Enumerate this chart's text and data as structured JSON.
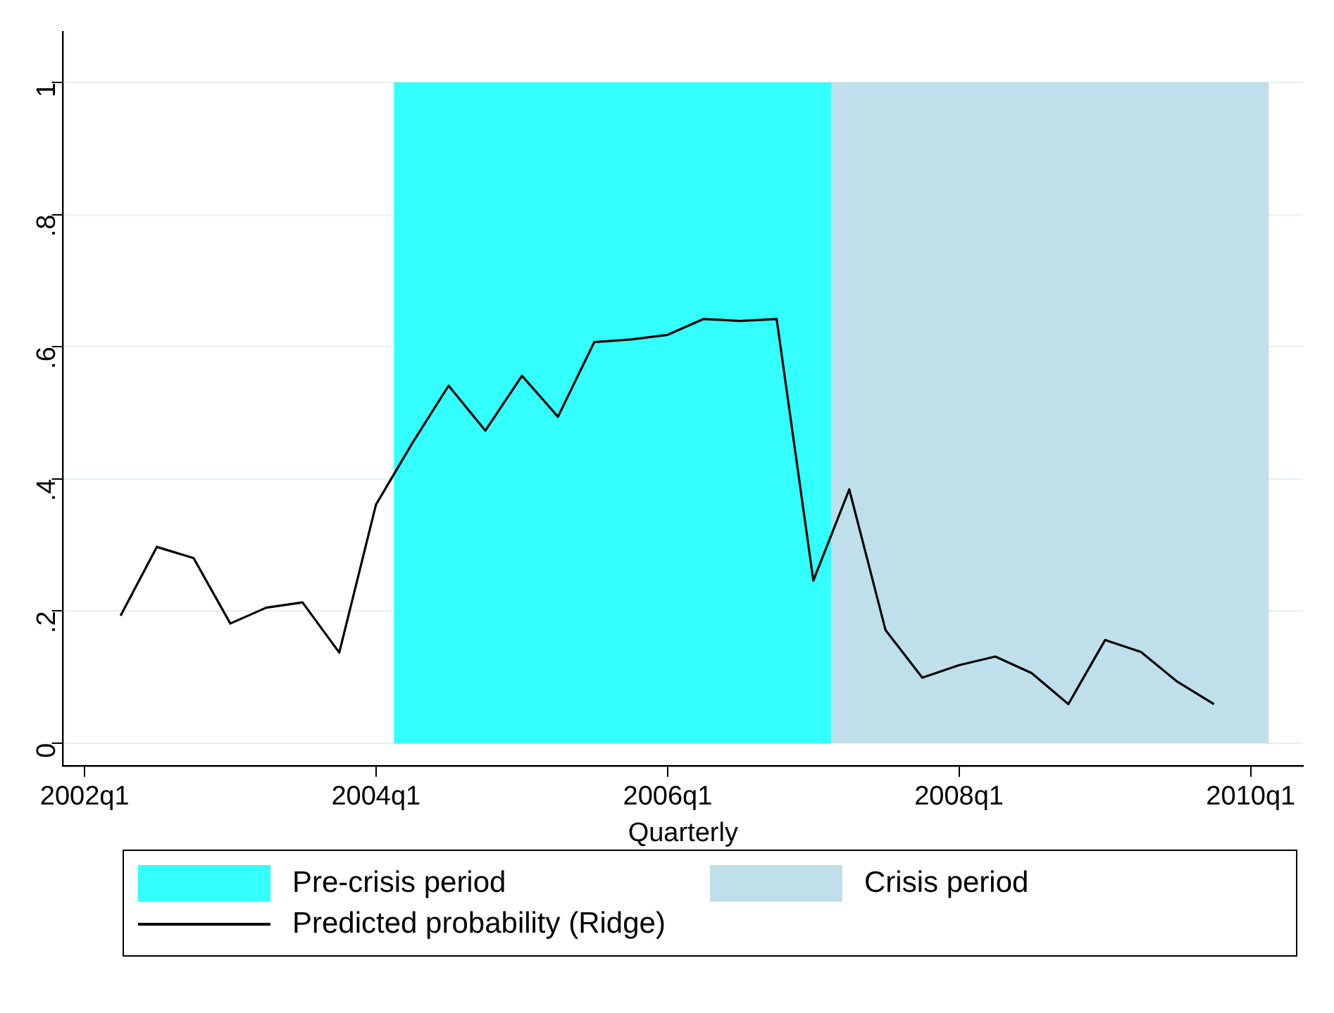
{
  "chart_data": {
    "type": "line",
    "xlabel": "Quarterly",
    "x": [
      "2002-04",
      "2002-07",
      "2002-10",
      "2003-01",
      "2003-04",
      "2003-07",
      "2003-10",
      "2004-01",
      "2004-04",
      "2004-07",
      "2004-10",
      "2005-01",
      "2005-04",
      "2005-07",
      "2005-10",
      "2006-01",
      "2006-04",
      "2006-07",
      "2006-10",
      "2007-01",
      "2007-04",
      "2007-07",
      "2007-10",
      "2008-01",
      "2008-04",
      "2008-07",
      "2008-10",
      "2009-01",
      "2009-04",
      "2009-07",
      "2009-10"
    ],
    "series": [
      {
        "name": "Predicted probability (Ridge)",
        "color": "#000000",
        "values": [
          0.193,
          0.297,
          0.28,
          0.181,
          0.205,
          0.213,
          0.137,
          0.361,
          0.454,
          0.541,
          0.473,
          0.556,
          0.494,
          0.607,
          0.611,
          0.618,
          0.642,
          0.639,
          0.642,
          0.246,
          0.384,
          0.171,
          0.099,
          0.118,
          0.131,
          0.106,
          0.059,
          0.156,
          0.138,
          0.093,
          0.059
        ]
      }
    ],
    "bands": [
      {
        "axis": "x",
        "from": "2004-02-15",
        "to": "2007-02-15",
        "label": "Pre-crisis period",
        "color": "#33ffff"
      },
      {
        "axis": "x",
        "from": "2007-02-15",
        "to": "2010-02-15",
        "label": "Crisis period",
        "color": "#bfe0ea"
      }
    ],
    "xlim": [
      "2001-11-08",
      "2010-05-12"
    ],
    "ylim": [
      -0.034,
      1.077
    ],
    "xticks": [
      {
        "value": "2002-01",
        "label": "2002q1"
      },
      {
        "value": "2004-01",
        "label": "2004q1"
      },
      {
        "value": "2006-01",
        "label": "2006q1"
      },
      {
        "value": "2008-01",
        "label": "2008q1"
      },
      {
        "value": "2010-01",
        "label": "2010q1"
      }
    ],
    "yticks": [
      0,
      {
        "value": 0.2,
        "label": ".2"
      },
      {
        "value": 0.4,
        "label": ".4"
      },
      {
        "value": 0.6,
        "label": ".6"
      },
      {
        "value": 0.8,
        "label": ".8"
      },
      1
    ],
    "grid": "y",
    "legend": "bottom",
    "marker": "none",
    "line_style": "solid"
  }
}
